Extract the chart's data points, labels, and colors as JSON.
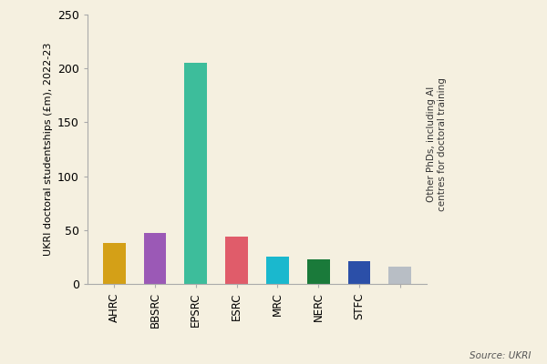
{
  "categories": [
    "AHRC",
    "BBSRC",
    "EPSRC",
    "ESRC",
    "MRC",
    "NERC",
    "STFC",
    "Other"
  ],
  "values": [
    38,
    47,
    205,
    44,
    25,
    23,
    21,
    16
  ],
  "colors": [
    "#D4A017",
    "#9B59B6",
    "#3DBD9B",
    "#E05C6A",
    "#1AB8CE",
    "#1A7A3A",
    "#2B4FA8",
    "#B8BEC5"
  ],
  "ylabel": "UKRI doctoral studentships (£m), 2022-23",
  "ylim": [
    0,
    250
  ],
  "yticks": [
    0,
    50,
    100,
    150,
    200,
    250
  ],
  "source_text": "Source: UKRI",
  "other_label": "Other PhDs, including AI\ncentres for doctoral training",
  "background_color": "#F5F0E0"
}
